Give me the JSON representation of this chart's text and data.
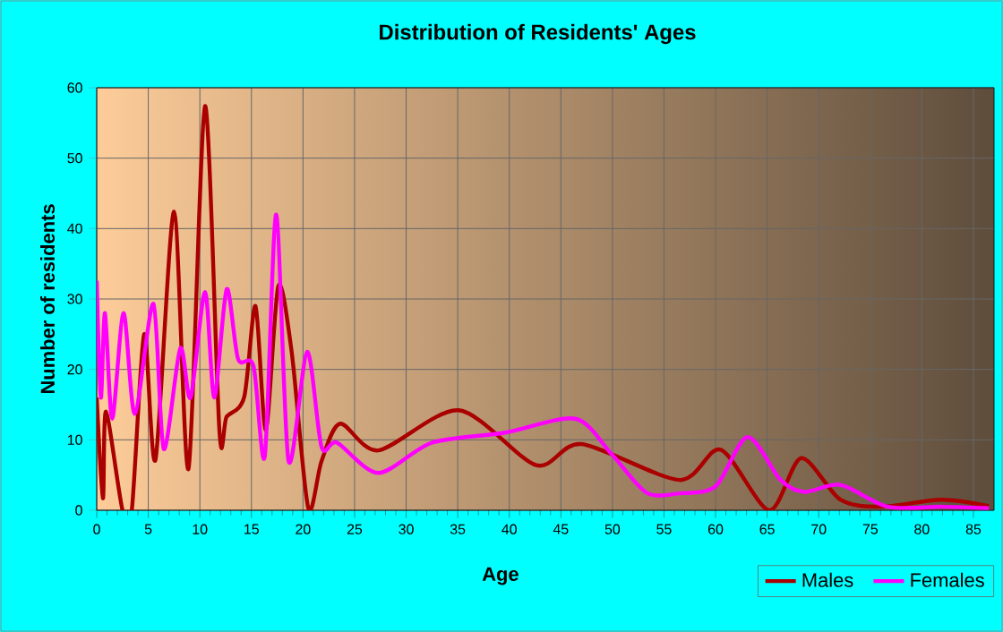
{
  "chart_data": {
    "type": "line",
    "title": "Distribution of Residents' Ages",
    "xlabel": "Age",
    "ylabel": "Number of residents",
    "xlim": [
      0,
      87
    ],
    "ylim": [
      0,
      60
    ],
    "xticks": [
      0,
      5,
      10,
      15,
      20,
      25,
      30,
      35,
      40,
      45,
      50,
      55,
      60,
      65,
      70,
      75,
      80,
      85
    ],
    "yticks": [
      0,
      10,
      20,
      30,
      40,
      50,
      60
    ],
    "grid": true,
    "legend": "bottom right",
    "series": [
      {
        "name": "Males",
        "color": "#aa0000",
        "x": [
          0,
          0.6,
          0.9,
          2.5,
          3.4,
          4.6,
          5.7,
          7.5,
          8.9,
          10.5,
          11.9,
          12.6,
          14.3,
          15.4,
          16.4,
          17.6,
          18.9,
          20.5,
          21.8,
          23.6,
          27.3,
          35.1,
          42.6,
          47,
          56.5,
          60.5,
          65.2,
          68.3,
          72.1,
          76.1,
          81.9,
          86.5
        ],
        "values": [
          16,
          1.7,
          14,
          0,
          0,
          25,
          7.2,
          42.4,
          5.9,
          57.4,
          11.2,
          13.3,
          16.1,
          29,
          11.4,
          31.8,
          22.5,
          0.4,
          7,
          12.3,
          8.5,
          14.2,
          6.4,
          9.4,
          4.3,
          8.6,
          0,
          7.4,
          1.5,
          0.5,
          1.5,
          0.6
        ]
      },
      {
        "name": "Females",
        "color": "#ff00ff",
        "x": [
          0,
          0.4,
          0.8,
          1.5,
          2.6,
          3.7,
          5.5,
          6.5,
          8.1,
          9.1,
          10.5,
          11.4,
          12.6,
          13.7,
          15.2,
          16.3,
          17.4,
          18.6,
          20.4,
          21.8,
          23.3,
          27.3,
          32.5,
          39.5,
          46.4,
          49.9,
          53.3,
          56.5,
          60,
          63.1,
          66.3,
          68.6,
          72.1,
          76.7,
          82,
          86.5
        ],
        "values": [
          32.6,
          16,
          28,
          13,
          28,
          13.7,
          29.3,
          8.7,
          23,
          16,
          31,
          16,
          31.4,
          21.5,
          20.5,
          7.7,
          42,
          7,
          22.5,
          9,
          9.6,
          5.3,
          9.6,
          11,
          13,
          8,
          2.5,
          2.4,
          3.4,
          10.4,
          4.3,
          2.6,
          3.6,
          0.5,
          0.5,
          0.3
        ]
      }
    ]
  }
}
